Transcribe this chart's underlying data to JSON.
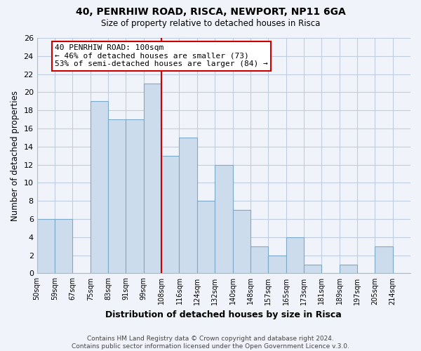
{
  "title": "40, PENRHIW ROAD, RISCA, NEWPORT, NP11 6GA",
  "subtitle": "Size of property relative to detached houses in Risca",
  "xlabel": "Distribution of detached houses by size in Risca",
  "ylabel": "Number of detached properties",
  "bar_color": "#ccdcec",
  "bar_edge_color": "#7aaac8",
  "bins": [
    "50sqm",
    "59sqm",
    "67sqm",
    "75sqm",
    "83sqm",
    "91sqm",
    "99sqm",
    "108sqm",
    "116sqm",
    "124sqm",
    "132sqm",
    "140sqm",
    "148sqm",
    "157sqm",
    "165sqm",
    "173sqm",
    "181sqm",
    "189sqm",
    "197sqm",
    "205sqm",
    "214sqm"
  ],
  "values": [
    6,
    6,
    0,
    19,
    17,
    17,
    21,
    13,
    15,
    8,
    12,
    7,
    3,
    2,
    4,
    1,
    0,
    1,
    0,
    3,
    0
  ],
  "property_line_bin_index": 6,
  "property_line_color": "#cc0000",
  "annotation_line1": "40 PENRHIW ROAD: 100sqm",
  "annotation_line2": "← 46% of detached houses are smaller (73)",
  "annotation_line3": "53% of semi-detached houses are larger (84) →",
  "ylim": [
    0,
    26
  ],
  "ytick_step": 2,
  "grid_color": "#c0cce0",
  "background_color": "#f0f4fa",
  "footer_line1": "Contains HM Land Registry data © Crown copyright and database right 2024.",
  "footer_line2": "Contains public sector information licensed under the Open Government Licence v.3.0."
}
